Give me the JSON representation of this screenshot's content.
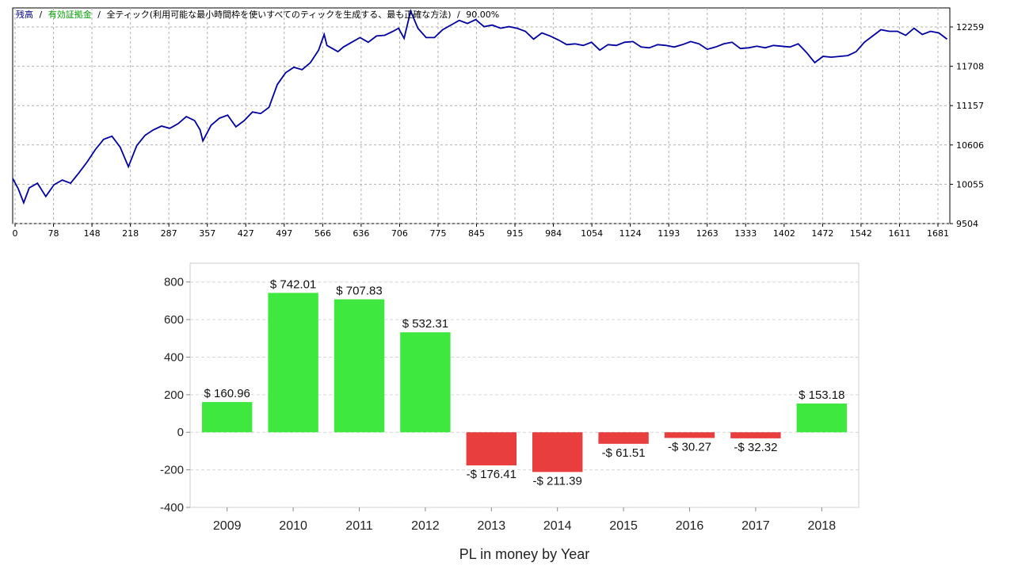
{
  "equity_chart": {
    "header": {
      "balance_label": "残高",
      "sep": "/",
      "equity_label": "有効証拠金",
      "mode_label": "全ティック(利用可能な最小時間枠を使いすべてのティックを生成する、最も正確な方法)",
      "quality_label": "90.00%",
      "balance_color": "#00008b",
      "equity_color": "#00a000",
      "text_color": "#000000"
    },
    "line_color": "#0000a0",
    "chart_data": {
      "type": "line",
      "x_ticks": [
        "0",
        "78",
        "148",
        "218",
        "287",
        "357",
        "427",
        "497",
        "566",
        "636",
        "706",
        "775",
        "845",
        "915",
        "984",
        "1054",
        "1124",
        "1193",
        "1263",
        "1333",
        "1402",
        "1472",
        "1542",
        "1611",
        "1681"
      ],
      "y_ticks": [
        "12259",
        "11708",
        "11157",
        "10606",
        "10055",
        "9504"
      ],
      "ylim": [
        9504,
        12259
      ],
      "xlim": [
        0,
        1700
      ],
      "grid": true,
      "series": [
        {
          "x": [
            0,
            10,
            20,
            30,
            45,
            60,
            75,
            90,
            105,
            120,
            135,
            150,
            165,
            180,
            195,
            210,
            225,
            240,
            255,
            270,
            285,
            300,
            315,
            330,
            340,
            345,
            360,
            375,
            390,
            405,
            420,
            435,
            450,
            465,
            480,
            495,
            510,
            525,
            540,
            555,
            565,
            570,
            580,
            590,
            600,
            615,
            630,
            645,
            660,
            675,
            690,
            700,
            710,
            722,
            735,
            750,
            765,
            780,
            795,
            810,
            825,
            840,
            855,
            870,
            885,
            900,
            915,
            930,
            945,
            960,
            975,
            990,
            1005,
            1020,
            1035,
            1050,
            1065,
            1080,
            1095,
            1110,
            1125,
            1140,
            1155,
            1170,
            1185,
            1200,
            1215,
            1230,
            1245,
            1260,
            1275,
            1290,
            1305,
            1320,
            1335,
            1350,
            1365,
            1380,
            1395,
            1410,
            1425,
            1440,
            1455,
            1470,
            1485,
            1500,
            1515,
            1530,
            1545,
            1560,
            1575,
            1590,
            1605,
            1620,
            1635,
            1650,
            1665,
            1680,
            1695
          ],
          "y": [
            10080,
            9950,
            9770,
            9960,
            10020,
            9850,
            10000,
            10060,
            10020,
            10150,
            10290,
            10450,
            10580,
            10620,
            10480,
            10230,
            10500,
            10630,
            10700,
            10750,
            10720,
            10780,
            10870,
            10820,
            10700,
            10560,
            10760,
            10850,
            10890,
            10740,
            10820,
            10930,
            10910,
            10990,
            11280,
            11430,
            11500,
            11470,
            11560,
            11720,
            11920,
            11780,
            11740,
            11700,
            11760,
            11820,
            11880,
            11820,
            11900,
            11910,
            11960,
            12000,
            11870,
            12220,
            12000,
            11880,
            11880,
            11980,
            12040,
            12100,
            12060,
            12110,
            12020,
            12040,
            12000,
            12020,
            12000,
            11960,
            11860,
            11940,
            11900,
            11850,
            11790,
            11800,
            11780,
            11820,
            11720,
            11790,
            11780,
            11820,
            11830,
            11760,
            11750,
            11790,
            11780,
            11760,
            11790,
            11830,
            11800,
            11730,
            11760,
            11800,
            11820,
            11740,
            11750,
            11770,
            11750,
            11780,
            11770,
            11760,
            11800,
            11690,
            11560,
            11640,
            11630,
            11640,
            11650,
            11700,
            11820,
            11900,
            11980,
            11960,
            11960,
            11910,
            12000,
            11920,
            11960,
            11940,
            11860
          ]
        }
      ]
    }
  },
  "pl_chart": {
    "bar_positive_color": "#3ee83e",
    "bar_negative_color": "#e83e3e",
    "chart_data": {
      "type": "bar",
      "categories": [
        "2009",
        "2010",
        "2011",
        "2012",
        "2013",
        "2014",
        "2015",
        "2016",
        "2017",
        "2018"
      ],
      "values": [
        160.96,
        742.01,
        707.83,
        532.31,
        -176.41,
        -211.39,
        -61.51,
        -30.27,
        -32.32,
        153.18
      ],
      "value_labels": [
        "$ 160.96",
        "$ 742.01",
        "$ 707.83",
        "$ 532.31",
        "-$ 176.41",
        "-$ 211.39",
        "-$ 61.51",
        "-$ 30.27",
        "-$ 32.32",
        "$ 153.18"
      ],
      "y_ticks": [
        "800",
        "600",
        "400",
        "200",
        "0",
        "-200",
        "-400"
      ],
      "ylim": [
        -400,
        900
      ],
      "title": "",
      "xlabel": "PL in money by Year",
      "ylabel": "",
      "grid": true
    }
  }
}
